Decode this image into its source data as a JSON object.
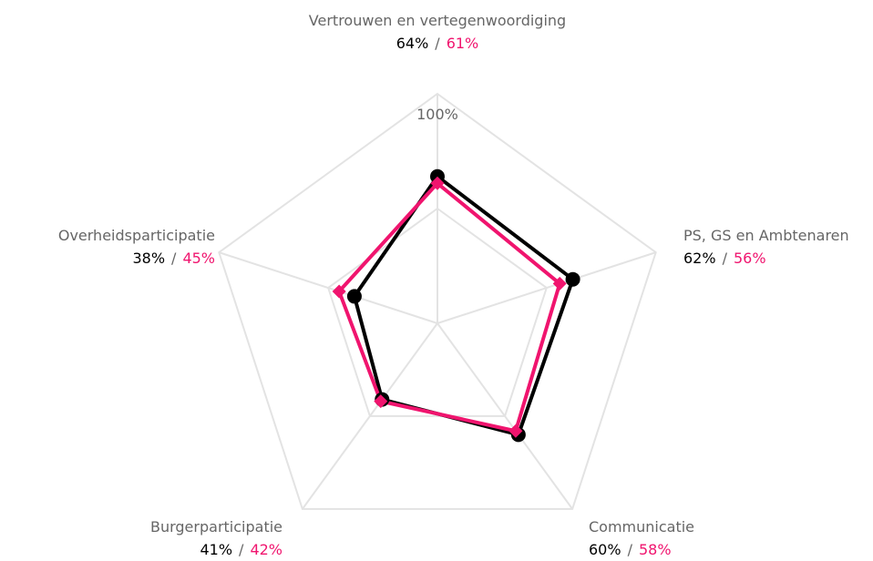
{
  "chart_data": {
    "type": "radar",
    "categories": [
      "Vertrouwen en vertegenwoordiging",
      "PS, GS en Ambtenaren",
      "Communicatie",
      "Burgerparticipatie",
      "Overheidsparticipatie"
    ],
    "series": [
      {
        "color": "#000000",
        "marker": "circle",
        "values": [
          64,
          62,
          60,
          41,
          38
        ],
        "value_labels": [
          "64%",
          "62%",
          "60%",
          "41%",
          "38%"
        ]
      },
      {
        "color": "#f0146e",
        "marker": "diamond",
        "values": [
          61,
          56,
          58,
          42,
          45
        ],
        "value_labels": [
          "61%",
          "56%",
          "58%",
          "42%",
          "45%"
        ]
      }
    ],
    "separator": "/",
    "ylim": [
      0,
      100
    ],
    "yticks": [
      {
        "value": 50,
        "label": null
      },
      {
        "value": 100,
        "label": "100%"
      }
    ],
    "grid": true
  }
}
